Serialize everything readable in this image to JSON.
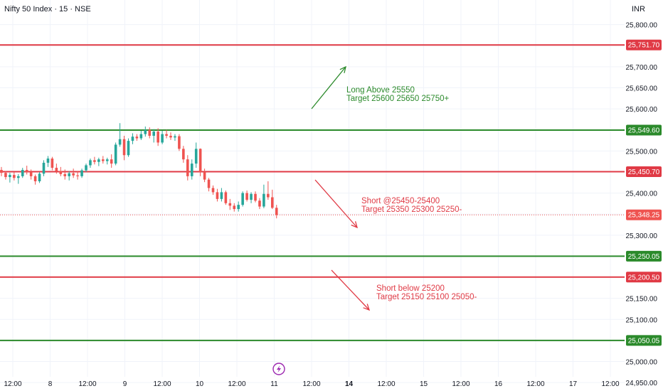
{
  "header": {
    "title": "Nifty 50 Index · 15 · NSE",
    "currency": "INR"
  },
  "colors": {
    "green": "#2b8a2b",
    "red": "#e03a45",
    "up_candle": "#26a69a",
    "down_candle": "#ef5350",
    "grid": "#f0f3fa",
    "price_badge_bg": "#ef5350"
  },
  "icons": {
    "bottom_logo": "lightning-bolt-icon"
  },
  "chart_data": {
    "type": "candlestick",
    "y_axis": {
      "min": 24930,
      "max": 25850,
      "ticks": [
        "25,800.00",
        "25,750.00",
        "25,700.00",
        "25,650.00",
        "25,600.00",
        "25,550.00",
        "25,500.00",
        "25,450.00",
        "25,400.00",
        "25,350.00",
        "25,300.00",
        "25,250.00",
        "25,200.00",
        "25,150.00",
        "25,100.00",
        "25,050.00",
        "25,000.00",
        "24,950.00"
      ]
    },
    "x_axis": {
      "labels": [
        {
          "text": "12:00",
          "bold": false
        },
        {
          "text": "8",
          "bold": false
        },
        {
          "text": "12:00",
          "bold": false
        },
        {
          "text": "9",
          "bold": false
        },
        {
          "text": "12:00",
          "bold": false
        },
        {
          "text": "10",
          "bold": false
        },
        {
          "text": "12:00",
          "bold": false
        },
        {
          "text": "11",
          "bold": false
        },
        {
          "text": "12:00",
          "bold": false
        },
        {
          "text": "14",
          "bold": true
        },
        {
          "text": "12:00",
          "bold": false
        },
        {
          "text": "15",
          "bold": false
        },
        {
          "text": "12:00",
          "bold": false
        },
        {
          "text": "16",
          "bold": false
        },
        {
          "text": "12:00",
          "bold": false
        },
        {
          "text": "17",
          "bold": false
        },
        {
          "text": "12:00",
          "bold": false
        }
      ]
    },
    "levels": [
      {
        "value": 25751.7,
        "label": "25,751.70",
        "color": "red"
      },
      {
        "value": 25549.6,
        "label": "25,549.60",
        "color": "green"
      },
      {
        "value": 25450.7,
        "label": "25,450.70",
        "color": "red"
      },
      {
        "value": 25250.05,
        "label": "25,250.05",
        "color": "green"
      },
      {
        "value": 25200.5,
        "label": "25,200.50",
        "color": "red"
      },
      {
        "value": 25050.05,
        "label": "25,050.05",
        "color": "green"
      }
    ],
    "last_price": {
      "value": 25348.25,
      "label": "25,348.25"
    },
    "candles": [
      [
        25455,
        25462,
        25440,
        25448
      ],
      [
        25448,
        25452,
        25432,
        25438
      ],
      [
        25438,
        25448,
        25425,
        25443
      ],
      [
        25443,
        25450,
        25430,
        25436
      ],
      [
        25436,
        25445,
        25422,
        25440
      ],
      [
        25440,
        25460,
        25436,
        25455
      ],
      [
        25455,
        25465,
        25444,
        25450
      ],
      [
        25450,
        25456,
        25432,
        25440
      ],
      [
        25440,
        25444,
        25420,
        25428
      ],
      [
        25428,
        25450,
        25424,
        25446
      ],
      [
        25446,
        25478,
        25440,
        25472
      ],
      [
        25472,
        25488,
        25462,
        25482
      ],
      [
        25482,
        25486,
        25454,
        25460
      ],
      [
        25460,
        25470,
        25446,
        25452
      ],
      [
        25452,
        25462,
        25440,
        25445
      ],
      [
        25445,
        25456,
        25432,
        25440
      ],
      [
        25440,
        25452,
        25430,
        25447
      ],
      [
        25447,
        25458,
        25436,
        25442
      ],
      [
        25442,
        25452,
        25432,
        25440
      ],
      [
        25440,
        25458,
        25436,
        25454
      ],
      [
        25454,
        25470,
        25450,
        25466
      ],
      [
        25466,
        25482,
        25460,
        25478
      ],
      [
        25478,
        25486,
        25468,
        25474
      ],
      [
        25474,
        25484,
        25464,
        25480
      ],
      [
        25480,
        25488,
        25470,
        25476
      ],
      [
        25476,
        25484,
        25468,
        25480
      ],
      [
        25480,
        25492,
        25460,
        25470
      ],
      [
        25470,
        25520,
        25466,
        25515
      ],
      [
        25515,
        25566,
        25510,
        25528
      ],
      [
        25528,
        25536,
        25478,
        25490
      ],
      [
        25490,
        25530,
        25486,
        25524
      ],
      [
        25524,
        25542,
        25516,
        25534
      ],
      [
        25534,
        25540,
        25524,
        25530
      ],
      [
        25530,
        25548,
        25526,
        25540
      ],
      [
        25540,
        25558,
        25534,
        25550
      ],
      [
        25550,
        25556,
        25530,
        25536
      ],
      [
        25536,
        25552,
        25520,
        25546
      ],
      [
        25546,
        25554,
        25512,
        25520
      ],
      [
        25520,
        25548,
        25516,
        25540
      ],
      [
        25540,
        25550,
        25530,
        25536
      ],
      [
        25536,
        25544,
        25526,
        25532
      ],
      [
        25532,
        25540,
        25524,
        25535
      ],
      [
        25535,
        25540,
        25500,
        25505
      ],
      [
        25505,
        25512,
        25472,
        25480
      ],
      [
        25480,
        25490,
        25430,
        25440
      ],
      [
        25440,
        25480,
        25432,
        25470
      ],
      [
        25470,
        25520,
        25460,
        25505
      ],
      [
        25505,
        25506,
        25440,
        25450
      ],
      [
        25450,
        25458,
        25426,
        25432
      ],
      [
        25432,
        25436,
        25404,
        25412
      ],
      [
        25412,
        25418,
        25396,
        25402
      ],
      [
        25402,
        25410,
        25380,
        25386
      ],
      [
        25386,
        25412,
        25380,
        25402
      ],
      [
        25402,
        25406,
        25372,
        25376
      ],
      [
        25376,
        25386,
        25360,
        25370
      ],
      [
        25370,
        25376,
        25356,
        25362
      ],
      [
        25362,
        25380,
        25356,
        25372
      ],
      [
        25372,
        25404,
        25368,
        25400
      ],
      [
        25400,
        25406,
        25380,
        25384
      ],
      [
        25384,
        25402,
        25376,
        25398
      ],
      [
        25398,
        25404,
        25378,
        25382
      ],
      [
        25382,
        25388,
        25362,
        25368
      ],
      [
        25368,
        25420,
        25364,
        25398
      ],
      [
        25398,
        25428,
        25384,
        25390
      ],
      [
        25390,
        25408,
        25362,
        25365
      ],
      [
        25365,
        25372,
        25340,
        25348
      ]
    ],
    "annotations": [
      {
        "line1": "Long  Above 25550",
        "line2": "Target 25600 25650 25750+",
        "color": "green"
      },
      {
        "line1": "Short @25450-25400",
        "line2": "Target 25350 25300 25250-",
        "color": "red"
      },
      {
        "line1": "Short below 25200",
        "line2": "Target 25150 25100 25050-",
        "color": "red"
      }
    ]
  }
}
